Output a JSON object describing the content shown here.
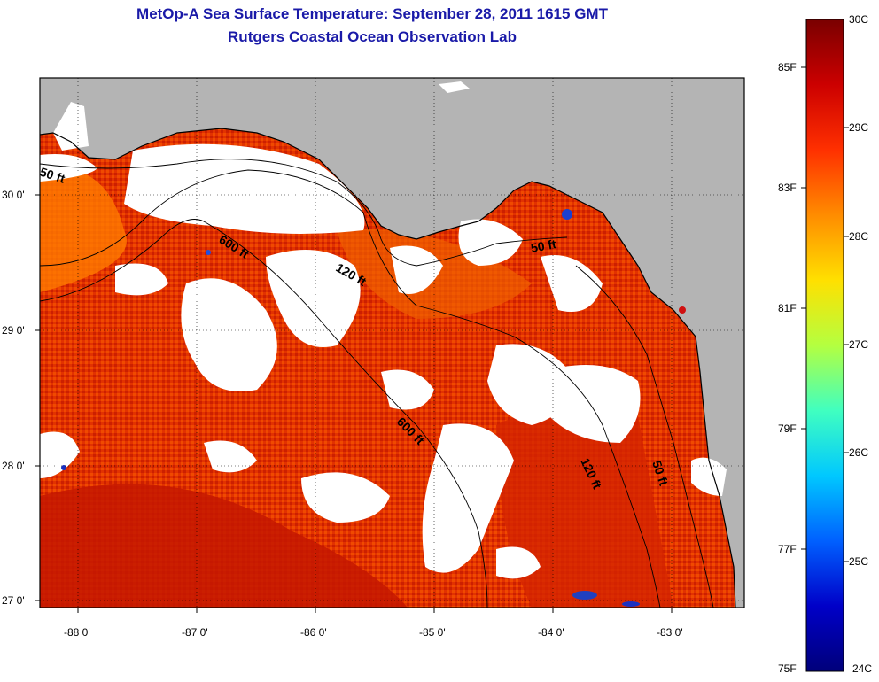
{
  "title_line1": "MetOp-A Sea Surface Temperature:  September 28, 2011 1615 GMT",
  "title_line2": "Rutgers Coastal Ocean Observation Lab",
  "lon_ticks": [
    "-88 0'",
    "-87 0'",
    "-86 0'",
    "-85 0'",
    "-84 0'",
    "-83 0'"
  ],
  "lat_ticks": [
    "30 0'",
    "29 0'",
    "28 0'",
    "27 0'"
  ],
  "contour_labels": {
    "c50_west": "50 ft",
    "c600_north": "600 ft",
    "c120_north": "120 ft",
    "c50_bigbend": "50 ft",
    "c600_south": "600 ft",
    "c120_south": "120 ft",
    "c50_south": "50 ft"
  },
  "colorbar": {
    "fahrenheit": [
      "85F",
      "83F",
      "81F",
      "79F",
      "77F",
      "75F"
    ],
    "celsius": [
      "30C",
      "29C",
      "28C",
      "27C",
      "26C",
      "25C",
      "24C"
    ],
    "colors": [
      "#7a0000",
      "#cc0000",
      "#ff3000",
      "#ff8c00",
      "#ffe000",
      "#b4ff40",
      "#40ffc0",
      "#00c8ff",
      "#0060ff",
      "#0000c8",
      "#00007a"
    ]
  },
  "colors": {
    "land": "#b4b4b4",
    "cloud": "#ffffff",
    "sst_warm": "#e83200",
    "sst_hot": "#c81a00",
    "title": "#1a1aa8"
  }
}
